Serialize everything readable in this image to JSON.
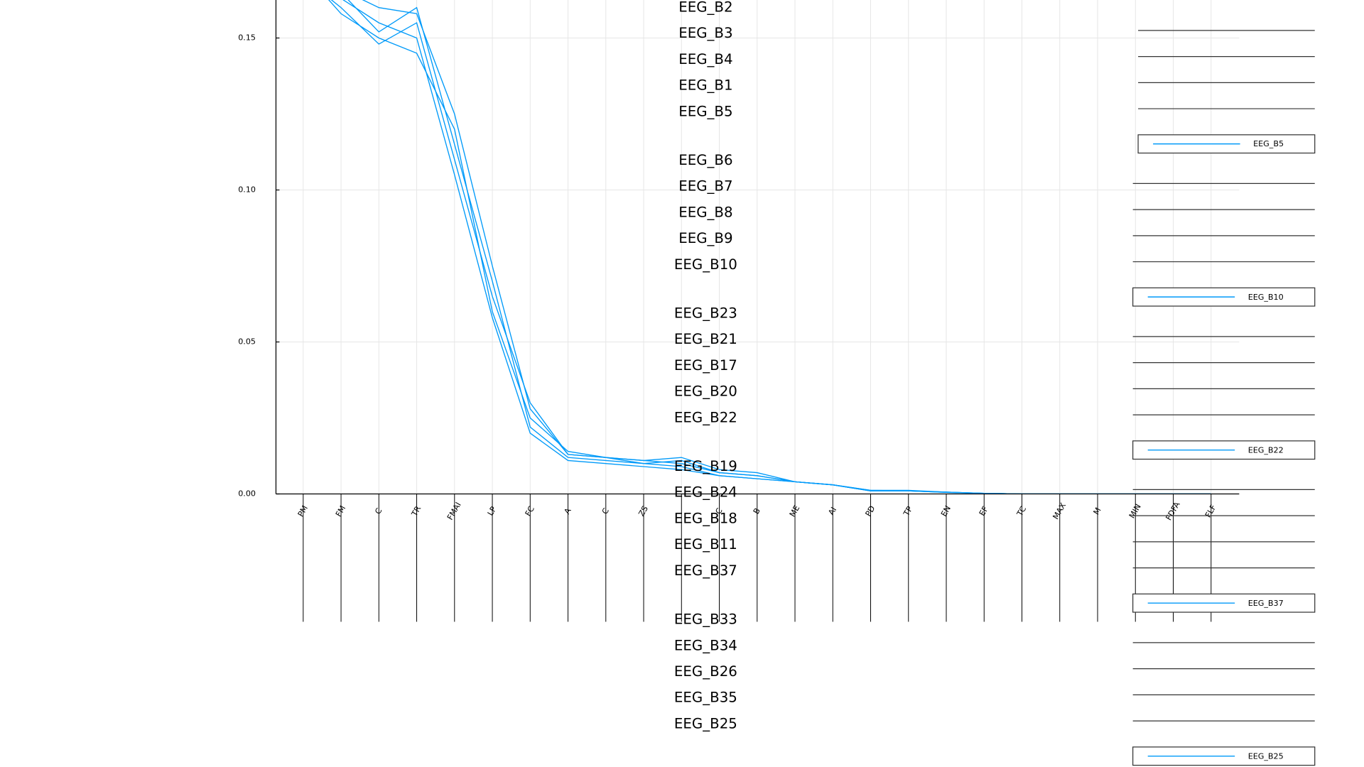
{
  "chart_data": {
    "type": "line",
    "panel_titles": [
      "EEG_B2",
      "EEG_B3",
      "EEG_B4",
      "EEG_B1",
      "EEG_B5",
      "EEG_B6",
      "EEG_B7",
      "EEG_B8",
      "EEG_B9",
      "EEG_B10",
      "EEG_B23",
      "EEG_B21",
      "EEG_B17",
      "EEG_B20",
      "EEG_B22",
      "EEG_B19",
      "EEG_B24",
      "EEG_B18",
      "EEG_B11",
      "EEG_B37",
      "EEG_B33",
      "EEG_B34",
      "EEG_B26",
      "EEG_B35",
      "EEG_B25"
    ],
    "categories": [
      "PM",
      "FM",
      "C",
      "TR",
      "FMAI",
      "LP",
      "FC",
      "A",
      "C",
      "ZS",
      null,
      "C",
      "B",
      "ME",
      "AI",
      "PD",
      "TP",
      "EN",
      "EF",
      "TC",
      "MAX",
      "M",
      "MIN",
      "FDFA",
      "FLF"
    ],
    "ylim": [
      0,
      0.1625
    ],
    "yticks": [
      {
        "value": 0,
        "label": "0.00"
      },
      {
        "value": 0.05,
        "label": "0.05"
      },
      {
        "value": 0.1,
        "label": "0.10"
      },
      {
        "value": 0.15,
        "label": "0.15"
      }
    ],
    "grid": true,
    "series": [
      {
        "name": "EEG_B5",
        "color": "#009af9",
        "values": [
          0.175,
          0.165,
          0.152,
          0.16,
          0.115,
          0.07,
          0.022,
          0.012,
          0.011,
          0.01,
          0.009,
          0.006,
          0.005,
          0.004,
          0.003,
          0.001,
          0.001,
          0.0005,
          0.0002,
          0,
          0,
          0,
          0,
          0,
          0
        ]
      },
      {
        "name": "EEG_B10",
        "color": "#009af9",
        "values": [
          0.17,
          0.16,
          0.148,
          0.155,
          0.11,
          0.065,
          0.03,
          0.013,
          0.012,
          0.011,
          0.01,
          0.007,
          0.006,
          0.004,
          0.003,
          0.001,
          0.001,
          0.0006,
          0.0002,
          0,
          0,
          0,
          0,
          0,
          0
        ]
      },
      {
        "name": "EEG_B22",
        "color": "#009af9",
        "values": [
          0.172,
          0.158,
          0.15,
          0.145,
          0.12,
          0.06,
          0.025,
          0.014,
          0.012,
          0.01,
          0.011,
          0.007,
          0.006,
          0.004,
          0.003,
          0.0012,
          0.0012,
          0.0006,
          0.0002,
          0,
          0,
          0,
          0,
          0,
          0
        ]
      },
      {
        "name": "EEG_B37",
        "color": "#009af9",
        "values": [
          0.168,
          0.163,
          0.155,
          0.15,
          0.105,
          0.058,
          0.02,
          0.011,
          0.01,
          0.009,
          0.008,
          0.006,
          0.005,
          0.004,
          0.003,
          0.001,
          0.001,
          0.0005,
          0.0002,
          0,
          0,
          0,
          0,
          0,
          0
        ]
      },
      {
        "name": "EEG_B25",
        "color": "#009af9",
        "values": [
          0.176,
          0.166,
          0.16,
          0.158,
          0.125,
          0.075,
          0.028,
          0.013,
          0.012,
          0.011,
          0.012,
          0.008,
          0.007,
          0.004,
          0.003,
          0.0012,
          0.001,
          0.0006,
          0.0002,
          0,
          0,
          0,
          0,
          0,
          0
        ]
      }
    ]
  }
}
